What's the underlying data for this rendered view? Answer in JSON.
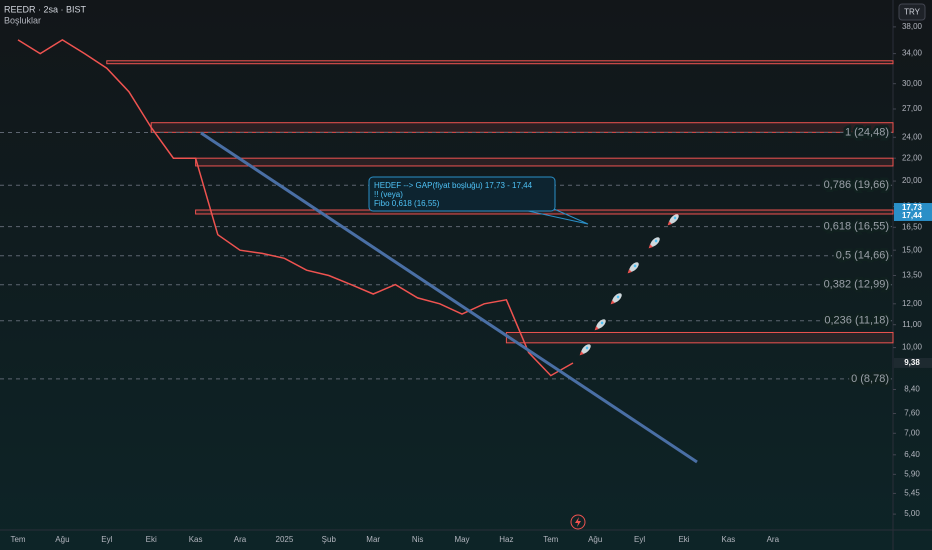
{
  "chart_data": {
    "type": "line",
    "symbol": "REEDR · 2sa · BIST",
    "indicator": "Boşluklar",
    "currency": "TRY",
    "log_scale": true,
    "categories": [
      "Tem",
      null,
      "Ağu",
      null,
      "Eyl",
      null,
      "Eki",
      null,
      "Kas",
      null,
      "Ara",
      null,
      "2025",
      null,
      "Şub",
      null,
      "Mar",
      null,
      "Nis",
      null,
      "May",
      null,
      "Haz",
      null,
      "Tem",
      null,
      "Ağu",
      null,
      "Eyl",
      null,
      "Eki",
      null,
      "Kas",
      null,
      "Ara",
      null
    ],
    "series": [
      {
        "name": "REEDR",
        "color": "#ef5350",
        "values": [
          36,
          34,
          36,
          34,
          32,
          29,
          25,
          22,
          22,
          16,
          15,
          14.8,
          14.5,
          13.8,
          13.5,
          13,
          12.5,
          13,
          12.3,
          12,
          11.5,
          12,
          12.2,
          9.8,
          8.9,
          9.38,
          null,
          null,
          null,
          null,
          null,
          null,
          null,
          null,
          null,
          null
        ]
      }
    ],
    "ylim": [
      4.68,
      42.5
    ],
    "yticks": [
      {
        "value": 38,
        "label": "38,00"
      },
      {
        "value": 34,
        "label": "34,00"
      },
      {
        "value": 30,
        "label": "30,00"
      },
      {
        "value": 27,
        "label": "27,00"
      },
      {
        "value": 24,
        "label": "24,00"
      },
      {
        "value": 22,
        "label": "22,00"
      },
      {
        "value": 20,
        "label": "20,00"
      },
      {
        "value": 18,
        "label": "18,00"
      },
      {
        "value": 16.5,
        "label": "16,50"
      },
      {
        "value": 15,
        "label": "15,00"
      },
      {
        "value": 13.5,
        "label": "13,50"
      },
      {
        "value": 12,
        "label": "12,00"
      },
      {
        "value": 11,
        "label": "11,00"
      },
      {
        "value": 10,
        "label": "10,00"
      },
      {
        "value": 8.4,
        "label": "8,40"
      },
      {
        "value": 7.6,
        "label": "7,60"
      },
      {
        "value": 7,
        "label": "7,00"
      },
      {
        "value": 6.4,
        "label": "6,40"
      },
      {
        "value": 5.9,
        "label": "5,90"
      },
      {
        "value": 5.45,
        "label": "5,45"
      },
      {
        "value": 5,
        "label": "5,00"
      }
    ],
    "fib_levels": [
      {
        "value": 24.48,
        "label": "1 (24,48)"
      },
      {
        "value": 19.66,
        "label": "0,786 (19,66)"
      },
      {
        "value": 16.55,
        "label": "0,618 (16,55)"
      },
      {
        "value": 14.66,
        "label": "0,5 (14,66)"
      },
      {
        "value": 12.99,
        "label": "0,382 (12,99)"
      },
      {
        "value": 11.18,
        "label": "0,236 (11,18)"
      },
      {
        "value": 8.78,
        "label": "0 (8,78)"
      }
    ],
    "zones": [
      {
        "low": 32.6,
        "high": 33.0,
        "start": 4
      },
      {
        "low": 24.5,
        "high": 25.5,
        "start": 6
      },
      {
        "low": 21.3,
        "high": 22.0,
        "start": 8
      },
      {
        "low": 17.44,
        "high": 17.73,
        "start": 8
      },
      {
        "low": 10.2,
        "high": 10.65,
        "start": 22
      }
    ],
    "annotation": [
      "HEDEF --> GAP(fiyat boşluğu) 17,73 - 17,44",
      "!! (veya)",
      "Fibo 0,618 (16,55)"
    ],
    "price_labels": [
      {
        "value": 17.73,
        "label": "17,73",
        "color": "#2a8fc7"
      },
      {
        "value": 17.44,
        "label": "17,44",
        "color": "#2a8fc7"
      },
      {
        "value": 9.38,
        "label": "9,38",
        "color": "#1e2a30"
      }
    ]
  }
}
